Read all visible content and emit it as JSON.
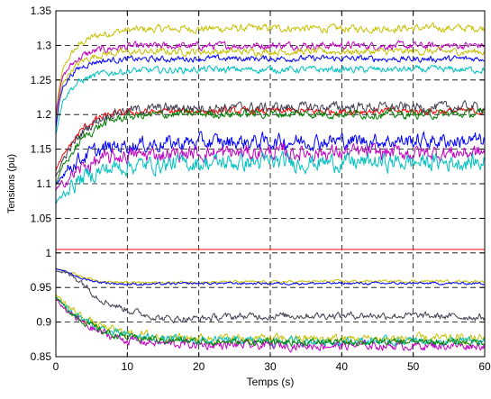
{
  "chart_data": {
    "type": "line",
    "title": "",
    "xlabel": "Temps (s)",
    "ylabel": "Tensions (pu)",
    "xlim": [
      0,
      60
    ],
    "ylim": [
      0.85,
      1.35
    ],
    "xticks": [
      "0",
      "10",
      "20",
      "30",
      "40",
      "50",
      "60"
    ],
    "yticks": [
      "0.85",
      "0.9",
      "0.95",
      "1",
      "1.05",
      "1.1",
      "1.15",
      "1.2",
      "1.25",
      "1.3",
      "1.35"
    ],
    "grid": true,
    "legend": "none",
    "reference_line": {
      "y": 1.005,
      "color": "#ff2020"
    },
    "series": [
      {
        "color": "#c8c000",
        "x": [
          0,
          0.5,
          1,
          2,
          3,
          4,
          5,
          6,
          8,
          10,
          15,
          20,
          30,
          40,
          50,
          60
        ],
        "y": [
          1.2,
          1.24,
          1.265,
          1.285,
          1.298,
          1.306,
          1.311,
          1.315,
          1.319,
          1.322,
          1.324,
          1.324,
          1.325,
          1.324,
          1.325,
          1.325
        ],
        "noise": 0.0045
      },
      {
        "color": "#c000c0",
        "x": [
          0,
          0.5,
          1,
          2,
          3,
          4,
          5,
          6,
          8,
          10,
          15,
          20,
          30,
          40,
          50,
          60
        ],
        "y": [
          1.2,
          1.235,
          1.255,
          1.27,
          1.28,
          1.286,
          1.29,
          1.293,
          1.296,
          1.298,
          1.299,
          1.299,
          1.3,
          1.3,
          1.299,
          1.3
        ],
        "noise": 0.0045
      },
      {
        "color": "#c8c000",
        "x": [
          0,
          0.5,
          1,
          2,
          3,
          4,
          5,
          6,
          8,
          10,
          15,
          20,
          30,
          40,
          50,
          60
        ],
        "y": [
          1.19,
          1.225,
          1.245,
          1.262,
          1.272,
          1.279,
          1.283,
          1.286,
          1.289,
          1.29,
          1.291,
          1.291,
          1.291,
          1.291,
          1.291,
          1.291
        ],
        "noise": 0.004
      },
      {
        "color": "#0000ff",
        "x": [
          0,
          0.5,
          1,
          2,
          3,
          4,
          5,
          6,
          8,
          10,
          15,
          20,
          30,
          40,
          50,
          60
        ],
        "y": [
          1.18,
          1.22,
          1.24,
          1.256,
          1.265,
          1.271,
          1.275,
          1.277,
          1.279,
          1.28,
          1.28,
          1.281,
          1.281,
          1.281,
          1.28,
          1.281
        ],
        "noise": 0.0035
      },
      {
        "color": "#00c0c0",
        "x": [
          0,
          0.5,
          1,
          2,
          3,
          4,
          5,
          6,
          8,
          10,
          15,
          20,
          30,
          40,
          50,
          60
        ],
        "y": [
          1.17,
          1.2,
          1.22,
          1.236,
          1.245,
          1.251,
          1.255,
          1.258,
          1.261,
          1.263,
          1.264,
          1.265,
          1.265,
          1.265,
          1.265,
          1.265
        ],
        "noise": 0.004
      },
      {
        "color": "#ff0000",
        "x": [
          0,
          1,
          2,
          3,
          4,
          6,
          8,
          10,
          15,
          20,
          30,
          40,
          50,
          60
        ],
        "y": [
          1.12,
          1.14,
          1.156,
          1.17,
          1.182,
          1.195,
          1.2,
          1.203,
          1.204,
          1.205,
          1.205,
          1.205,
          1.205,
          1.205
        ],
        "noise": 0.004
      },
      {
        "color": "#404050",
        "x": [
          0,
          1,
          2,
          3,
          4,
          6,
          8,
          10,
          15,
          20,
          30,
          40,
          50,
          60
        ],
        "y": [
          1.11,
          1.135,
          1.15,
          1.165,
          1.178,
          1.193,
          1.202,
          1.206,
          1.209,
          1.21,
          1.21,
          1.211,
          1.21,
          1.211
        ],
        "noise": 0.006
      },
      {
        "color": "#008000",
        "x": [
          0,
          1,
          2,
          3,
          4,
          6,
          8,
          10,
          15,
          20,
          30,
          40,
          50,
          60
        ],
        "y": [
          1.1,
          1.125,
          1.14,
          1.155,
          1.168,
          1.183,
          1.192,
          1.197,
          1.2,
          1.201,
          1.201,
          1.201,
          1.2,
          1.201
        ],
        "noise": 0.005
      },
      {
        "color": "#0000ff",
        "x": [
          0,
          1,
          2,
          3,
          4,
          6,
          8,
          10,
          15,
          20,
          30,
          40,
          50,
          60
        ],
        "y": [
          1.1,
          1.115,
          1.125,
          1.133,
          1.14,
          1.148,
          1.153,
          1.156,
          1.158,
          1.16,
          1.161,
          1.162,
          1.162,
          1.162
        ],
        "noise": 0.009
      },
      {
        "color": "#c000c0",
        "x": [
          0,
          1,
          2,
          3,
          4,
          6,
          8,
          10,
          15,
          20,
          30,
          40,
          50,
          60
        ],
        "y": [
          1.09,
          1.1,
          1.11,
          1.118,
          1.125,
          1.133,
          1.138,
          1.141,
          1.143,
          1.144,
          1.145,
          1.145,
          1.145,
          1.145
        ],
        "noise": 0.009
      },
      {
        "color": "#00c0c0",
        "x": [
          0,
          1,
          2,
          3,
          4,
          6,
          8,
          10,
          15,
          20,
          30,
          40,
          50,
          60
        ],
        "y": [
          1.07,
          1.085,
          1.095,
          1.103,
          1.11,
          1.118,
          1.123,
          1.126,
          1.128,
          1.13,
          1.131,
          1.131,
          1.131,
          1.131
        ],
        "noise": 0.01
      },
      {
        "color": "#c8c000",
        "x": [
          0,
          1,
          2,
          3,
          4,
          5,
          6,
          8,
          10,
          15,
          20,
          30,
          40,
          50,
          60
        ],
        "y": [
          0.978,
          0.975,
          0.972,
          0.968,
          0.965,
          0.962,
          0.96,
          0.958,
          0.957,
          0.957,
          0.958,
          0.958,
          0.959,
          0.959,
          0.959
        ],
        "noise": 0.0015
      },
      {
        "color": "#0000ff",
        "x": [
          0,
          1,
          2,
          3,
          4,
          5,
          6,
          8,
          10,
          15,
          20,
          30,
          40,
          50,
          60
        ],
        "y": [
          0.977,
          0.974,
          0.97,
          0.966,
          0.962,
          0.96,
          0.958,
          0.956,
          0.955,
          0.955,
          0.956,
          0.956,
          0.956,
          0.956,
          0.956
        ],
        "noise": 0.0015
      },
      {
        "color": "#404050",
        "x": [
          0,
          1,
          2,
          3,
          4,
          5,
          6,
          8,
          10,
          12,
          15,
          20,
          25,
          30,
          40,
          50,
          60
        ],
        "y": [
          0.975,
          0.972,
          0.968,
          0.963,
          0.955,
          0.945,
          0.935,
          0.925,
          0.918,
          0.912,
          0.905,
          0.905,
          0.908,
          0.909,
          0.91,
          0.909,
          0.907
        ],
        "noise": 0.004
      },
      {
        "color": "#c8c000",
        "x": [
          0,
          1,
          2,
          4,
          6,
          8,
          10,
          15,
          20,
          30,
          40,
          50,
          60
        ],
        "y": [
          0.94,
          0.93,
          0.92,
          0.905,
          0.895,
          0.888,
          0.884,
          0.879,
          0.877,
          0.876,
          0.876,
          0.876,
          0.876
        ],
        "noise": 0.005
      },
      {
        "color": "#00c0c0",
        "x": [
          0,
          1,
          2,
          4,
          6,
          8,
          10,
          15,
          20,
          30,
          40,
          50,
          60
        ],
        "y": [
          0.937,
          0.927,
          0.917,
          0.902,
          0.891,
          0.884,
          0.88,
          0.875,
          0.873,
          0.872,
          0.872,
          0.872,
          0.872
        ],
        "noise": 0.005
      },
      {
        "color": "#c000c0",
        "x": [
          0,
          1,
          2,
          4,
          6,
          8,
          10,
          15,
          20,
          30,
          40,
          50,
          60
        ],
        "y": [
          0.932,
          0.922,
          0.912,
          0.897,
          0.886,
          0.879,
          0.874,
          0.869,
          0.867,
          0.866,
          0.866,
          0.866,
          0.866
        ],
        "noise": 0.005
      },
      {
        "color": "#008000",
        "x": [
          0,
          1,
          2,
          4,
          6,
          8,
          10,
          15,
          20,
          30,
          40,
          50,
          60
        ],
        "y": [
          0.935,
          0.925,
          0.915,
          0.9,
          0.889,
          0.882,
          0.878,
          0.874,
          0.872,
          0.871,
          0.871,
          0.871,
          0.871
        ],
        "noise": 0.004
      }
    ]
  }
}
